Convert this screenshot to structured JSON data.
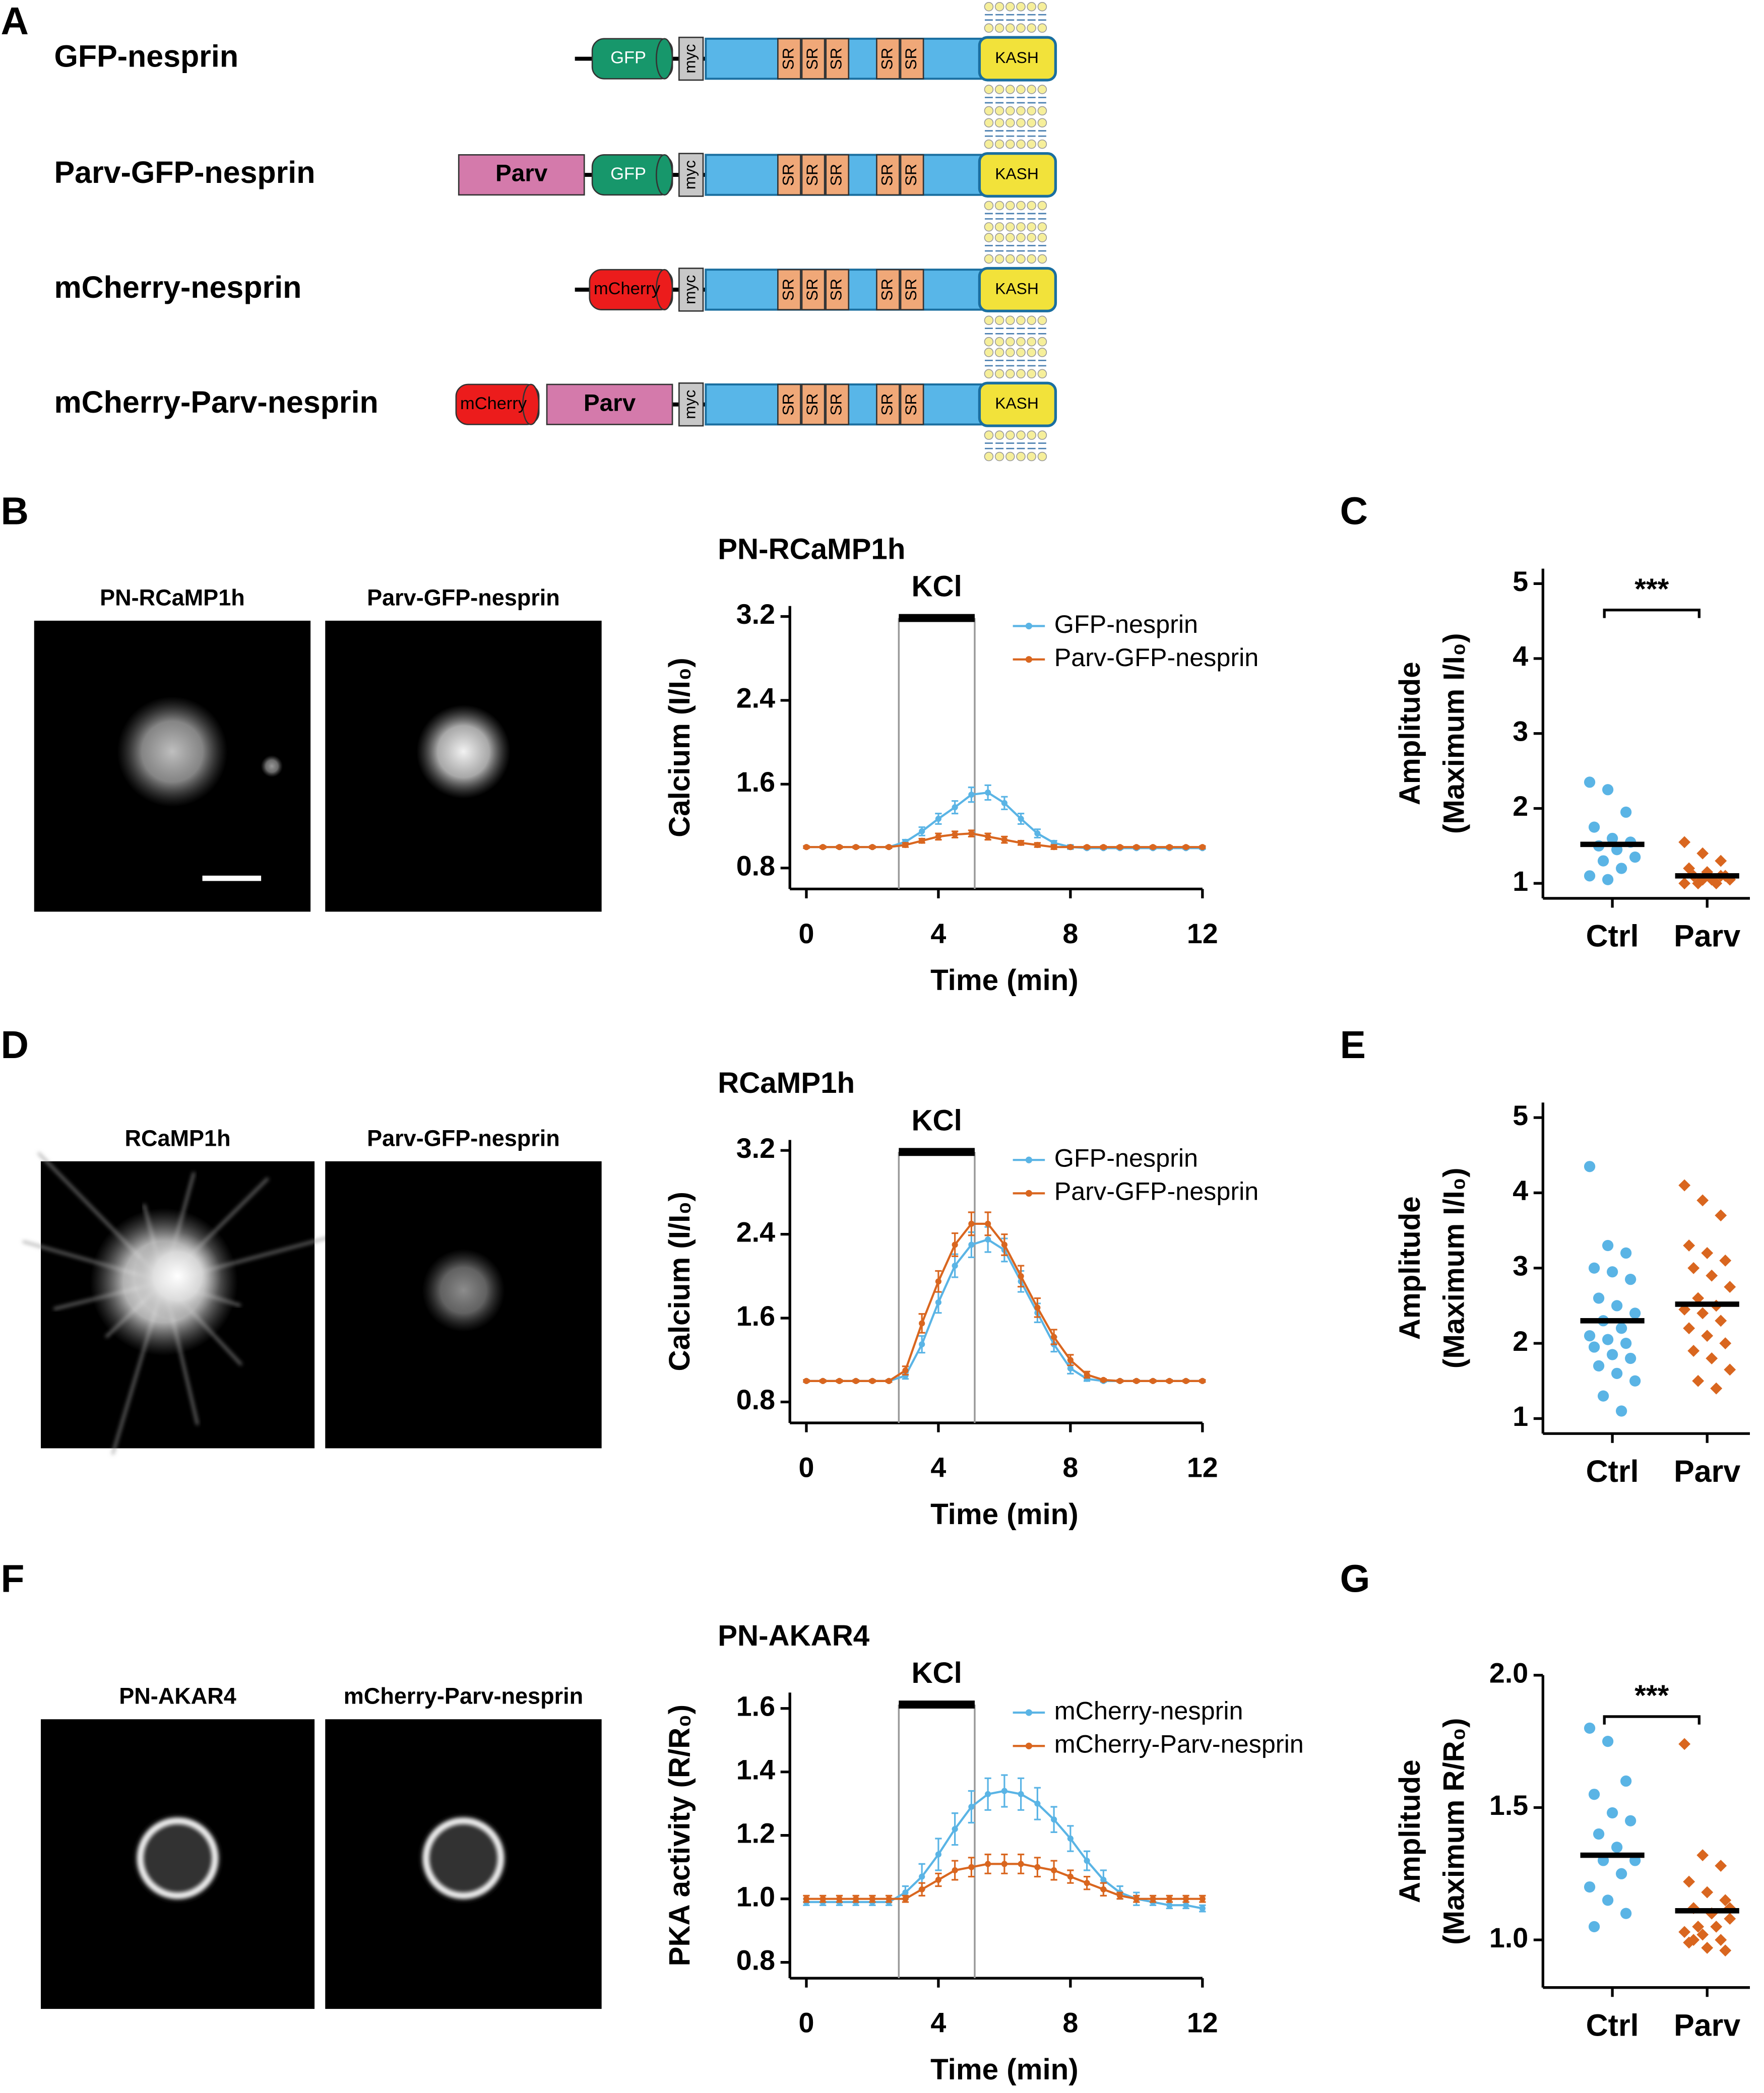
{
  "panel_labels": [
    "A",
    "B",
    "C",
    "D",
    "E",
    "F",
    "G"
  ],
  "constructs": [
    {
      "name": "GFP-nesprin",
      "domains": [
        "GFP",
        "myc",
        "SR",
        "SR",
        "SR",
        "SR",
        "SR",
        "KASH"
      ]
    },
    {
      "name": "Parv-GFP-nesprin",
      "domains": [
        "Parv",
        "GFP",
        "myc",
        "SR",
        "SR",
        "SR",
        "SR",
        "SR",
        "KASH"
      ]
    },
    {
      "name": "mCherry-nesprin",
      "domains": [
        "mCherry",
        "myc",
        "SR",
        "SR",
        "SR",
        "SR",
        "SR",
        "KASH"
      ]
    },
    {
      "name": "mCherry-Parv-nesprin",
      "domains": [
        "mCherry",
        "Parv",
        "myc",
        "SR",
        "SR",
        "SR",
        "SR",
        "SR",
        "KASH"
      ]
    }
  ],
  "image_panels": [
    {
      "label": "PN-RCaMP1h"
    },
    {
      "label": "Parv-GFP-nesprin"
    },
    {
      "label": "RCaMP1h"
    },
    {
      "label": "Parv-GFP-nesprin"
    },
    {
      "label": "PN-AKAR4"
    },
    {
      "label": "mCherry-Parv-nesprin"
    }
  ],
  "chart_data": [
    {
      "type": "line",
      "title": "PN-RCaMP1h",
      "xlabel": "Time (min)",
      "ylabel": "Calcium (I/I₀)",
      "x": [
        0,
        0.5,
        1,
        1.5,
        2,
        2.5,
        3,
        3.5,
        4,
        4.5,
        5,
        5.5,
        6,
        6.5,
        7,
        7.5,
        8,
        8.5,
        9,
        9.5,
        10,
        10.5,
        11,
        11.5,
        12
      ],
      "xlim": [
        -0.5,
        12
      ],
      "xticks": [
        0,
        4,
        8,
        12
      ],
      "ylim": [
        0.6,
        3.3
      ],
      "yticks": [
        0.8,
        1.6,
        2.4,
        3.2
      ],
      "stimulus": {
        "label": "KCl",
        "start": 2.8,
        "end": 5.1
      },
      "series": [
        {
          "name": "GFP-nesprin",
          "color": "#5ab4e5",
          "values": [
            1.0,
            1.0,
            1.0,
            1.0,
            1.0,
            1.0,
            1.05,
            1.15,
            1.27,
            1.38,
            1.5,
            1.52,
            1.42,
            1.27,
            1.13,
            1.04,
            1.0,
            0.99,
            0.99,
            0.99,
            0.99,
            0.99,
            0.99,
            0.99,
            0.99
          ],
          "errors": [
            0.01,
            0.01,
            0.01,
            0.01,
            0.01,
            0.01,
            0.02,
            0.04,
            0.05,
            0.06,
            0.07,
            0.07,
            0.06,
            0.05,
            0.04,
            0.02,
            0.02,
            0.01,
            0.01,
            0.01,
            0.01,
            0.01,
            0.01,
            0.01,
            0.01
          ]
        },
        {
          "name": "Parv-GFP-nesprin",
          "color": "#d9661f",
          "values": [
            1.0,
            1.0,
            1.0,
            1.0,
            1.0,
            1.0,
            1.02,
            1.06,
            1.1,
            1.12,
            1.13,
            1.1,
            1.07,
            1.04,
            1.02,
            1.0,
            1.0,
            1.0,
            1.0,
            1.0,
            1.0,
            1.0,
            1.0,
            1.0,
            1.0
          ],
          "errors": [
            0.01,
            0.01,
            0.01,
            0.01,
            0.01,
            0.01,
            0.02,
            0.02,
            0.03,
            0.03,
            0.03,
            0.03,
            0.03,
            0.02,
            0.02,
            0.02,
            0.01,
            0.01,
            0.01,
            0.01,
            0.01,
            0.01,
            0.01,
            0.01,
            0.01
          ]
        }
      ]
    },
    {
      "type": "strip",
      "ylabel": [
        "Amplitude",
        "(Maximum I/I₀)"
      ],
      "categories": [
        "Ctrl",
        "Parv"
      ],
      "ylim": [
        0.8,
        5.2
      ],
      "yticks": [
        1,
        2,
        3,
        4,
        5
      ],
      "significance": "***",
      "series": [
        {
          "color": "#5ab4e5",
          "marker": "circle",
          "values": [
            2.35,
            2.25,
            1.95,
            1.75,
            1.6,
            1.55,
            1.5,
            1.45,
            1.35,
            1.3,
            1.2,
            1.1,
            1.05
          ],
          "mean": 1.52
        },
        {
          "color": "#d9661f",
          "marker": "diamond",
          "values": [
            1.55,
            1.4,
            1.3,
            1.2,
            1.15,
            1.1,
            1.1,
            1.05,
            1.05,
            1.0,
            1.0,
            1.0,
            1.05,
            1.1
          ],
          "mean": 1.1
        }
      ]
    },
    {
      "type": "line",
      "title": "RCaMP1h",
      "xlabel": "Time (min)",
      "ylabel": "Calcium (I/I₀)",
      "x": [
        0,
        0.5,
        1,
        1.5,
        2,
        2.5,
        3,
        3.5,
        4,
        4.5,
        5,
        5.5,
        6,
        6.5,
        7,
        7.5,
        8,
        8.5,
        9,
        9.5,
        10,
        10.5,
        11,
        11.5,
        12
      ],
      "xlim": [
        -0.5,
        12
      ],
      "xticks": [
        0,
        4,
        8,
        12
      ],
      "ylim": [
        0.6,
        3.3
      ],
      "yticks": [
        0.8,
        1.6,
        2.4,
        3.2
      ],
      "stimulus": {
        "label": "KCl",
        "start": 2.8,
        "end": 5.1
      },
      "series": [
        {
          "name": "GFP-nesprin",
          "color": "#5ab4e5",
          "values": [
            1.0,
            1.0,
            1.0,
            1.0,
            1.0,
            1.0,
            1.05,
            1.35,
            1.75,
            2.1,
            2.3,
            2.35,
            2.25,
            1.95,
            1.65,
            1.35,
            1.12,
            1.02,
            1.0,
            1.0,
            1.0,
            1.0,
            1.0,
            1.0,
            1.0
          ],
          "errors": [
            0.01,
            0.01,
            0.01,
            0.01,
            0.01,
            0.01,
            0.03,
            0.08,
            0.1,
            0.11,
            0.12,
            0.12,
            0.11,
            0.1,
            0.09,
            0.07,
            0.05,
            0.02,
            0.01,
            0.01,
            0.01,
            0.01,
            0.01,
            0.01,
            0.01
          ]
        },
        {
          "name": "Parv-GFP-nesprin",
          "color": "#d9661f",
          "values": [
            1.0,
            1.0,
            1.0,
            1.0,
            1.0,
            1.0,
            1.1,
            1.55,
            1.95,
            2.3,
            2.5,
            2.5,
            2.3,
            2.0,
            1.7,
            1.42,
            1.2,
            1.06,
            1.01,
            1.0,
            1.0,
            1.0,
            1.0,
            1.0,
            1.0
          ],
          "errors": [
            0.01,
            0.01,
            0.01,
            0.01,
            0.01,
            0.01,
            0.04,
            0.09,
            0.1,
            0.11,
            0.11,
            0.11,
            0.1,
            0.1,
            0.09,
            0.07,
            0.05,
            0.03,
            0.01,
            0.01,
            0.01,
            0.01,
            0.01,
            0.01,
            0.01
          ]
        }
      ]
    },
    {
      "type": "strip",
      "ylabel": [
        "Amplitude",
        "(Maximum I/I₀)"
      ],
      "categories": [
        "Ctrl",
        "Parv"
      ],
      "ylim": [
        0.8,
        5.2
      ],
      "yticks": [
        1,
        2,
        3,
        4,
        5
      ],
      "series": [
        {
          "color": "#5ab4e5",
          "marker": "circle",
          "values": [
            4.35,
            3.3,
            3.2,
            3.0,
            2.95,
            2.85,
            2.6,
            2.5,
            2.4,
            2.3,
            2.2,
            2.1,
            2.05,
            2.0,
            1.95,
            1.85,
            1.8,
            1.7,
            1.6,
            1.5,
            1.3,
            1.1
          ],
          "mean": 2.3
        },
        {
          "color": "#d9661f",
          "marker": "diamond",
          "values": [
            4.1,
            3.9,
            3.7,
            3.3,
            3.2,
            3.1,
            3.0,
            2.9,
            2.75,
            2.6,
            2.5,
            2.45,
            2.4,
            2.3,
            2.2,
            2.1,
            2.0,
            1.9,
            1.8,
            1.65,
            1.5,
            1.4
          ],
          "mean": 2.52
        }
      ]
    },
    {
      "type": "line",
      "title": "PN-AKAR4",
      "xlabel": "Time (min)",
      "ylabel": "PKA activity (R/R₀)",
      "x": [
        0,
        0.5,
        1,
        1.5,
        2,
        2.5,
        3,
        3.5,
        4,
        4.5,
        5,
        5.5,
        6,
        6.5,
        7,
        7.5,
        8,
        8.5,
        9,
        9.5,
        10,
        10.5,
        11,
        11.5,
        12
      ],
      "xlim": [
        -0.5,
        12
      ],
      "xticks": [
        0,
        4,
        8,
        12
      ],
      "ylim": [
        0.75,
        1.65
      ],
      "yticks": [
        0.8,
        {
          "value": 1,
          "label": "1.0"
        },
        1.2,
        1.4,
        1.6
      ],
      "stimulus": {
        "label": "KCl",
        "start": 2.8,
        "end": 5.1
      },
      "series": [
        {
          "name": "mCherry-nesprin",
          "color": "#5ab4e5",
          "values": [
            0.99,
            0.99,
            0.99,
            0.99,
            0.99,
            0.99,
            1.02,
            1.07,
            1.14,
            1.22,
            1.29,
            1.33,
            1.34,
            1.33,
            1.3,
            1.25,
            1.19,
            1.12,
            1.06,
            1.02,
            1.0,
            0.99,
            0.98,
            0.98,
            0.97
          ],
          "errors": [
            0.01,
            0.01,
            0.01,
            0.01,
            0.01,
            0.01,
            0.02,
            0.04,
            0.05,
            0.05,
            0.05,
            0.05,
            0.05,
            0.05,
            0.05,
            0.04,
            0.04,
            0.03,
            0.03,
            0.02,
            0.02,
            0.01,
            0.01,
            0.01,
            0.01
          ]
        },
        {
          "name": "mCherry-Parv-nesprin",
          "color": "#d9661f",
          "values": [
            1.0,
            1.0,
            1.0,
            1.0,
            1.0,
            1.0,
            1.0,
            1.03,
            1.06,
            1.09,
            1.1,
            1.11,
            1.11,
            1.11,
            1.1,
            1.09,
            1.07,
            1.05,
            1.03,
            1.01,
            1.0,
            1.0,
            1.0,
            1.0,
            1.0
          ],
          "errors": [
            0.01,
            0.01,
            0.01,
            0.01,
            0.01,
            0.01,
            0.01,
            0.02,
            0.02,
            0.03,
            0.03,
            0.03,
            0.03,
            0.03,
            0.03,
            0.03,
            0.02,
            0.02,
            0.02,
            0.01,
            0.01,
            0.01,
            0.01,
            0.01,
            0.01
          ]
        }
      ]
    },
    {
      "type": "strip",
      "ylabel": [
        "Amplitude",
        "(Maximum R/R₀)"
      ],
      "categories": [
        "Ctrl",
        "Parv"
      ],
      "ylim": [
        0.82,
        2.0
      ],
      "yticks": [
        {
          "value": 1,
          "label": "1.0"
        },
        1.5,
        {
          "value": 2,
          "label": "2.0"
        }
      ],
      "significance": "***",
      "series": [
        {
          "color": "#5ab4e5",
          "marker": "circle",
          "values": [
            1.8,
            1.75,
            1.6,
            1.55,
            1.48,
            1.45,
            1.4,
            1.35,
            1.3,
            1.3,
            1.25,
            1.2,
            1.15,
            1.1,
            1.05
          ],
          "mean": 1.32
        },
        {
          "color": "#d9661f",
          "marker": "diamond",
          "values": [
            1.74,
            1.32,
            1.28,
            1.22,
            1.18,
            1.15,
            1.12,
            1.1,
            1.08,
            1.05,
            1.05,
            1.03,
            1.02,
            1.0,
            0.99,
            0.97,
            0.96,
            1.0,
            1.1,
            1.12
          ],
          "mean": 1.11
        }
      ]
    }
  ]
}
